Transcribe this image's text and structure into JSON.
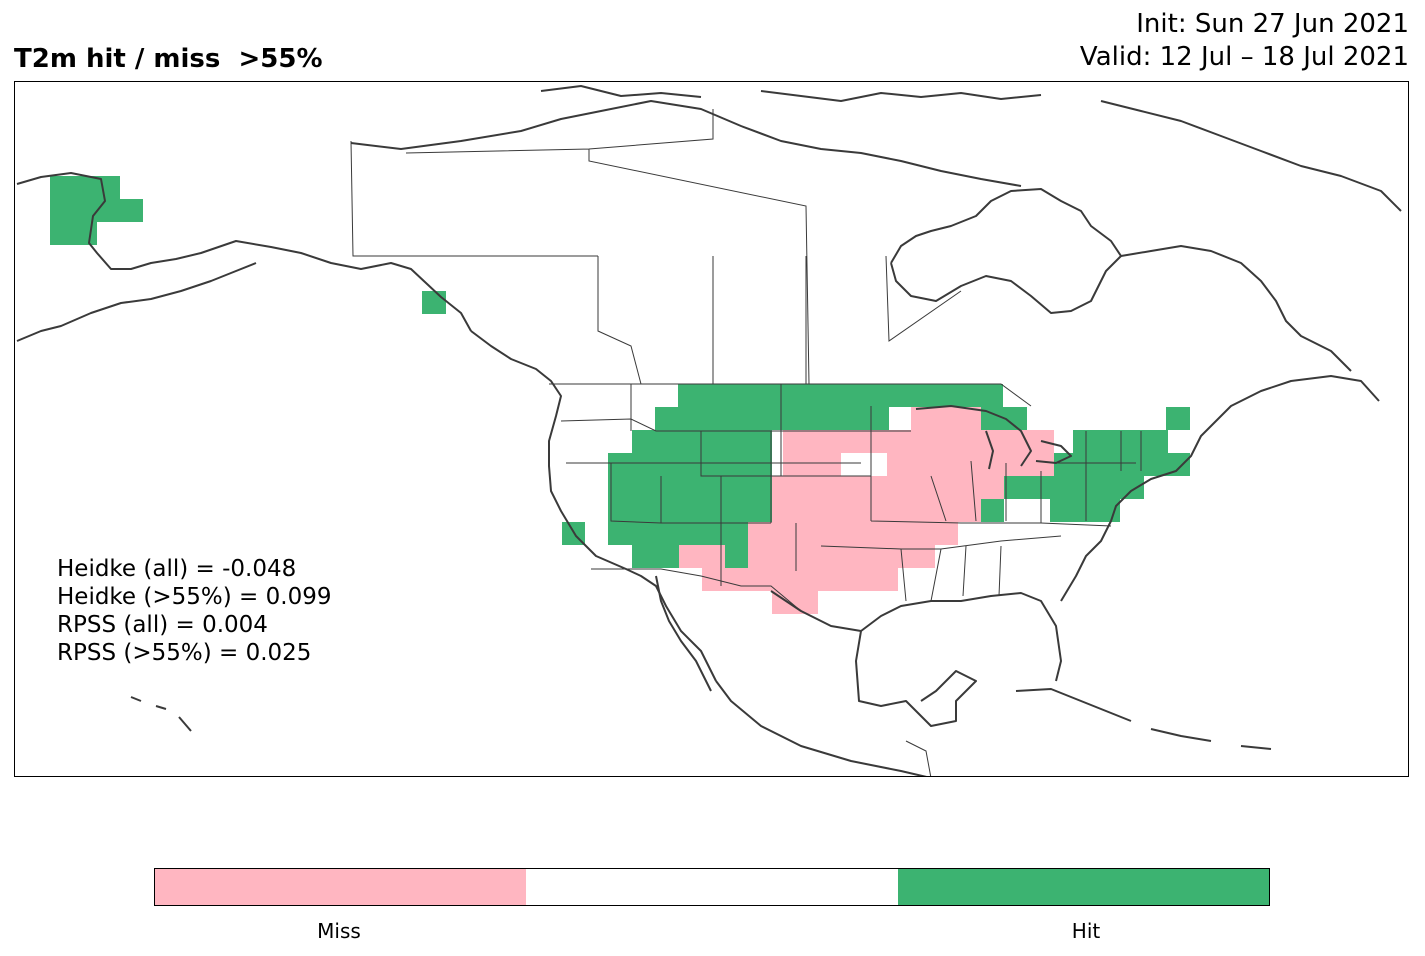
{
  "title": "T2m hit / miss  >55%",
  "init": "Init: Sun 27 Jun 2021",
  "valid": "Valid: 12 Jul – 18 Jul 2021",
  "stats": [
    "Heidke (all) = -0.048",
    "Heidke (>55%) = 0.099",
    "RPSS (all) = 0.004",
    "RPSS (>55%) = 0.025"
  ],
  "legend": {
    "miss_label": "Miss",
    "hit_label": "Hit",
    "colors": [
      "#ffb6c1",
      "#ffffff",
      "#3cb371"
    ]
  },
  "colors": {
    "hit": "#3cb371",
    "miss": "#ffb6c1",
    "coastline": "#3a3a3a",
    "border": "#3a3a3a"
  }
}
